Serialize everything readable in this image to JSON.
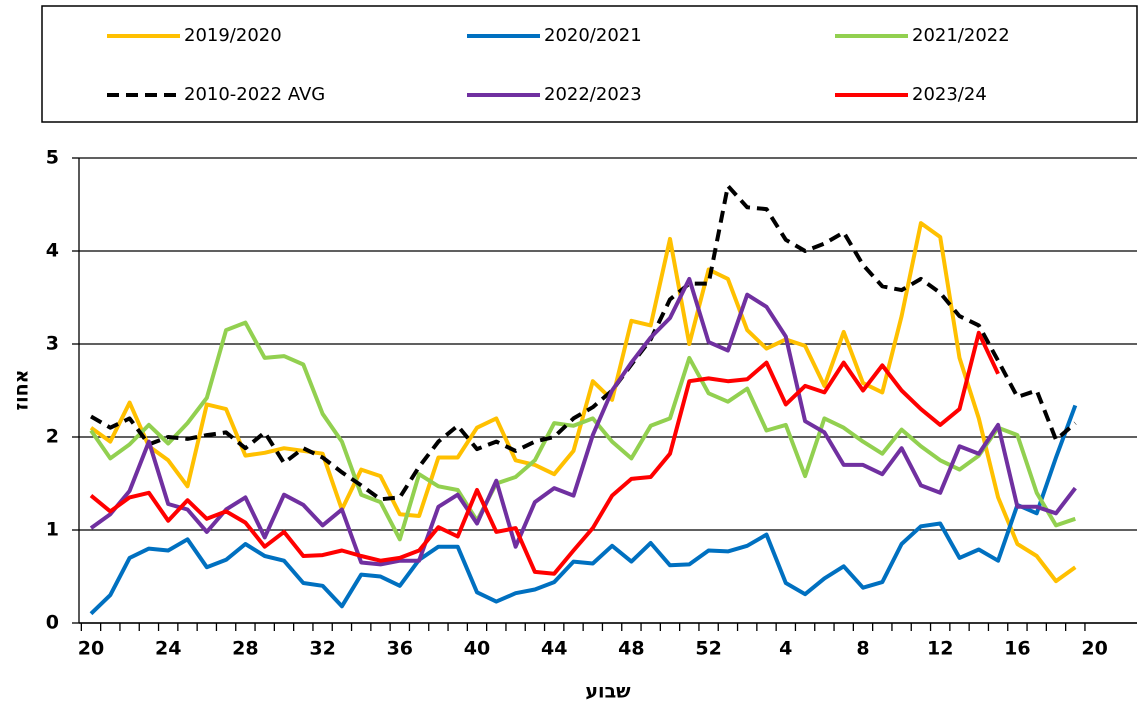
{
  "chart_data": {
    "type": "line",
    "y_label": "אחוז",
    "x_label": "שבוע",
    "categories": [
      "20",
      null,
      null,
      null,
      "24",
      null,
      null,
      null,
      "28",
      null,
      null,
      null,
      "32",
      null,
      null,
      null,
      "36",
      null,
      null,
      null,
      "40",
      null,
      null,
      null,
      "44",
      null,
      null,
      null,
      "48",
      null,
      null,
      null,
      "52",
      null,
      null,
      null,
      "4",
      null,
      null,
      null,
      "8",
      null,
      null,
      null,
      "12",
      null,
      null,
      null,
      "16",
      null,
      null,
      null,
      "20"
    ],
    "ylim": [
      0,
      5
    ],
    "yticks": [
      0,
      1,
      2,
      3,
      4,
      5
    ],
    "grid": true,
    "series": [
      {
        "name": "2019/2020",
        "color": "#ffc000",
        "values": [
          2.1,
          1.95,
          2.37,
          1.9,
          1.75,
          1.47,
          2.35,
          2.3,
          1.8,
          1.83,
          1.88,
          1.85,
          1.82,
          1.22,
          1.65,
          1.58,
          1.17,
          1.15,
          1.78,
          1.78,
          2.1,
          2.2,
          1.75,
          1.7,
          1.6,
          1.85,
          2.6,
          2.4,
          3.25,
          3.2,
          4.13,
          3.0,
          3.8,
          3.7,
          3.15,
          2.95,
          3.05,
          2.98,
          2.55,
          3.13,
          2.58,
          2.48,
          3.3,
          4.3,
          4.15,
          2.85,
          2.2,
          1.35,
          0.85,
          0.72,
          0.45,
          0.6,
          null
        ]
      },
      {
        "name": "2020/2021",
        "color": "#0070c0",
        "values": [
          0.1,
          0.3,
          0.7,
          0.8,
          0.78,
          0.9,
          0.6,
          0.68,
          0.85,
          0.72,
          0.67,
          0.43,
          0.4,
          0.18,
          0.52,
          0.5,
          0.4,
          0.68,
          0.82,
          0.82,
          0.33,
          0.23,
          0.32,
          0.36,
          0.44,
          0.66,
          0.64,
          0.83,
          0.66,
          0.86,
          0.62,
          0.63,
          0.78,
          0.77,
          0.83,
          0.95,
          0.43,
          0.31,
          0.48,
          0.61,
          0.38,
          0.44,
          0.85,
          1.04,
          1.07,
          0.7,
          0.79,
          0.67,
          1.27,
          1.18,
          1.78,
          2.34,
          null
        ]
      },
      {
        "name": "2021/2022",
        "color": "#92d050",
        "values": [
          2.07,
          1.77,
          1.92,
          2.13,
          1.93,
          2.15,
          2.42,
          3.15,
          3.23,
          2.85,
          2.87,
          2.78,
          2.25,
          1.95,
          1.38,
          1.3,
          0.9,
          1.6,
          1.47,
          1.43,
          1.1,
          1.5,
          1.57,
          1.75,
          2.15,
          2.12,
          2.2,
          1.95,
          1.77,
          2.12,
          2.2,
          2.85,
          2.47,
          2.38,
          2.52,
          2.07,
          2.13,
          1.58,
          2.2,
          2.1,
          1.95,
          1.82,
          2.08,
          1.9,
          1.75,
          1.65,
          1.8,
          2.1,
          2.02,
          1.4,
          1.05,
          1.12,
          null
        ]
      },
      {
        "name": "2010-2022 AVG",
        "color": "#000000",
        "dashed": true,
        "values": [
          2.22,
          2.1,
          2.2,
          1.92,
          2.0,
          1.98,
          2.02,
          2.05,
          1.88,
          2.05,
          1.72,
          1.88,
          1.78,
          1.62,
          1.48,
          1.33,
          1.35,
          1.68,
          1.95,
          2.12,
          1.87,
          1.95,
          1.85,
          1.95,
          2.0,
          2.2,
          2.32,
          2.5,
          2.78,
          3.05,
          3.48,
          3.65,
          3.65,
          4.7,
          4.47,
          4.45,
          4.12,
          4.0,
          4.08,
          4.2,
          3.85,
          3.62,
          3.58,
          3.7,
          3.55,
          3.3,
          3.2,
          2.82,
          2.43,
          2.5,
          1.97,
          2.15,
          null
        ]
      },
      {
        "name": "2022/2023",
        "color": "#7030a0",
        "values": [
          1.02,
          1.17,
          1.42,
          1.95,
          1.28,
          1.22,
          0.98,
          1.22,
          1.35,
          0.92,
          1.38,
          1.27,
          1.05,
          1.22,
          0.65,
          0.63,
          0.67,
          0.67,
          1.25,
          1.38,
          1.07,
          1.53,
          0.82,
          1.3,
          1.45,
          1.37,
          2.02,
          2.5,
          2.8,
          3.07,
          3.28,
          3.7,
          3.02,
          2.93,
          3.53,
          3.4,
          3.08,
          2.17,
          2.05,
          1.7,
          1.7,
          1.6,
          1.88,
          1.48,
          1.4,
          1.9,
          1.82,
          2.13,
          1.25,
          1.25,
          1.18,
          1.45,
          null
        ]
      },
      {
        "name": "2023/24",
        "color": "#ff0000",
        "values": [
          1.37,
          1.2,
          1.35,
          1.4,
          1.1,
          1.32,
          1.12,
          1.2,
          1.08,
          0.82,
          0.98,
          0.72,
          0.73,
          0.78,
          0.72,
          0.67,
          0.7,
          0.78,
          1.03,
          0.93,
          1.43,
          0.98,
          1.02,
          0.55,
          0.53,
          0.78,
          1.02,
          1.37,
          1.55,
          1.57,
          1.82,
          2.6,
          2.63,
          2.6,
          2.62,
          2.8,
          2.35,
          2.55,
          2.48,
          2.8,
          2.5,
          2.77,
          2.5,
          2.3,
          2.13,
          2.3,
          3.12,
          2.68,
          null,
          null,
          null,
          null,
          null
        ]
      }
    ]
  }
}
